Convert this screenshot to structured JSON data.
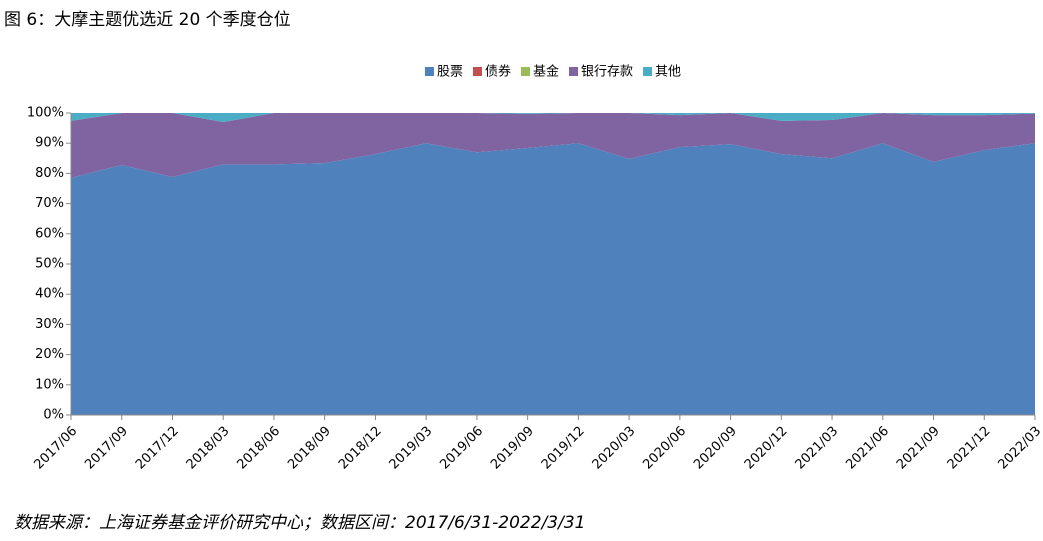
{
  "chart_data": {
    "type": "stacked_area",
    "title": "图 6：大摩主题优选近 20 个季度仓位",
    "footnote": "数据来源：上海证券基金评价研究中心；数据区间：2017/6/31-2022/3/31",
    "categories": [
      "2017/06",
      "2017/09",
      "2017/12",
      "2018/03",
      "2018/06",
      "2018/09",
      "2018/12",
      "2019/03",
      "2019/06",
      "2019/09",
      "2019/12",
      "2020/03",
      "2020/06",
      "2020/09",
      "2020/12",
      "2021/03",
      "2021/06",
      "2021/09",
      "2021/12",
      "2022/03"
    ],
    "series": [
      {
        "name": "股票",
        "color": "#4f81bd",
        "values": [
          78.5,
          82.8,
          78.8,
          83,
          83,
          83.4,
          86.4,
          90,
          87,
          88.4,
          90,
          84.8,
          88.7,
          89.7,
          86.4,
          85,
          90,
          83.8,
          87.7,
          90
        ]
      },
      {
        "name": "债券",
        "color": "#c0504d",
        "values": [
          0,
          0,
          0,
          0,
          0,
          0,
          0,
          0,
          0,
          0,
          0,
          0,
          0,
          0,
          0,
          0,
          0,
          0,
          0,
          0
        ]
      },
      {
        "name": "基金",
        "color": "#9bbb59",
        "values": [
          0,
          0,
          0,
          0,
          0,
          0,
          0,
          0,
          0,
          0,
          0,
          0,
          0,
          0,
          0,
          0,
          0,
          0,
          0,
          0
        ]
      },
      {
        "name": "银行存款",
        "color": "#8064a2",
        "values": [
          18.9,
          17.2,
          21.2,
          14,
          17,
          16.6,
          13.6,
          10,
          13,
          11.3,
          10,
          15.2,
          10.6,
          10.3,
          11,
          12.7,
          10,
          15.5,
          11.6,
          9.8
        ]
      },
      {
        "name": "其他",
        "color": "#4bacc6",
        "values": [
          2.6,
          0,
          0,
          3,
          0,
          0,
          0,
          0,
          0,
          0.3,
          0,
          0,
          0.7,
          0,
          2.6,
          2.3,
          0,
          0.7,
          0.7,
          0.2
        ]
      }
    ],
    "ylim": [
      0,
      100
    ],
    "yticks": [
      {
        "value": 0,
        "label": "0%"
      },
      {
        "value": 10,
        "label": "10%"
      },
      {
        "value": 20,
        "label": "20%"
      },
      {
        "value": 30,
        "label": "30%"
      },
      {
        "value": 40,
        "label": "40%"
      },
      {
        "value": 50,
        "label": "50%"
      },
      {
        "value": 60,
        "label": "60%"
      },
      {
        "value": 70,
        "label": "70%"
      },
      {
        "value": 80,
        "label": "80%"
      },
      {
        "value": 90,
        "label": "90%"
      },
      {
        "value": 100,
        "label": "100%"
      }
    ],
    "legend": "top"
  }
}
